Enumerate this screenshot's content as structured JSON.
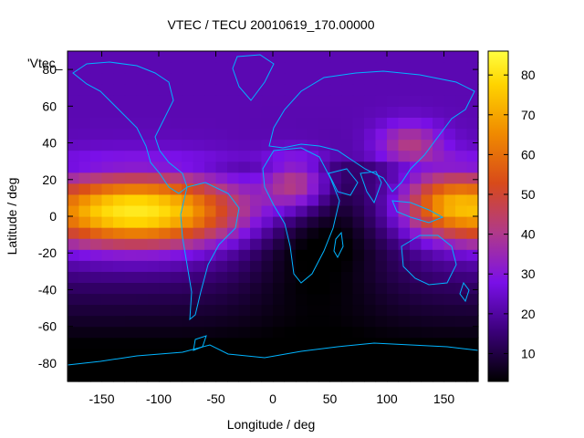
{
  "chart_data": {
    "type": "heatmap",
    "title": "VTEC / TECU 20010619_170.00000",
    "xlabel": "Longitude / deg",
    "ylabel": "Latitude / deg",
    "key_label": "'Vtec_",
    "xlim": [
      -180,
      180
    ],
    "ylim": [
      -90,
      90
    ],
    "xticks": [
      -150,
      -100,
      -50,
      0,
      50,
      100,
      150
    ],
    "yticks": [
      -80,
      -60,
      -40,
      -20,
      0,
      20,
      40,
      60,
      80
    ],
    "colorbar": {
      "range": [
        3,
        86
      ],
      "ticks": [
        10,
        20,
        30,
        40,
        50,
        60,
        70,
        80
      ],
      "palette_stops": [
        "#000000",
        "#3a0078",
        "#7a10e8",
        "#b03a8a",
        "#d84a1a",
        "#f08a00",
        "#ffd400",
        "#ffff40"
      ]
    },
    "coastline_color": "#00b4ff",
    "grid": false,
    "legend": "top-left",
    "approx_features": [
      {
        "lon": -140,
        "lat": 2,
        "vtec": 80,
        "note": "equatorial anomaly peak (Pacific)"
      },
      {
        "lon": -100,
        "lat": 0,
        "vtec": 85
      },
      {
        "lon": -60,
        "lat": 10,
        "vtec": 52
      },
      {
        "lon": 25,
        "lat": 20,
        "vtec": 55
      },
      {
        "lon": 150,
        "lat": 10,
        "vtec": 60
      },
      {
        "lon": 60,
        "lat": -10,
        "vtec": 5,
        "note": "low over Indian Ocean / Africa"
      },
      {
        "lon": 0,
        "lat": -60,
        "vtec": 5
      }
    ]
  }
}
